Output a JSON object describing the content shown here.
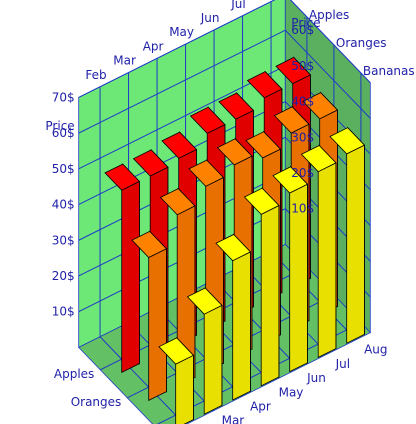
{
  "chart_data": {
    "type": "bar",
    "style": "3d-grouped-depth",
    "title": "",
    "xlabel": "",
    "ylabel": "Price",
    "ylim": [
      0,
      70
    ],
    "y_ticks": [
      "10$",
      "20$",
      "30$",
      "40$",
      "50$",
      "60$",
      "70$"
    ],
    "categories": [
      "Feb",
      "Mar",
      "Apr",
      "May",
      "Jun",
      "Jul",
      "Aug"
    ],
    "series": [
      {
        "name": "Apples",
        "color": "#e00000",
        "values": [
          51,
          51,
          52,
          55,
          55,
          57,
          57
        ]
      },
      {
        "name": "Oranges",
        "color": "#e87000",
        "values": [
          40,
          48,
          52,
          54,
          52,
          55,
          55
        ]
      },
      {
        "name": "Bananas",
        "color": "#e8e000",
        "values": [
          18,
          28,
          39,
          48,
          50,
          52,
          53
        ]
      }
    ],
    "grid": true,
    "colors": {
      "back_wall": "#6de876",
      "floor": "#64c064",
      "right_wall": "#5bb060",
      "grid_line": "#1e3ac8",
      "label": "#1f1fa8"
    }
  }
}
